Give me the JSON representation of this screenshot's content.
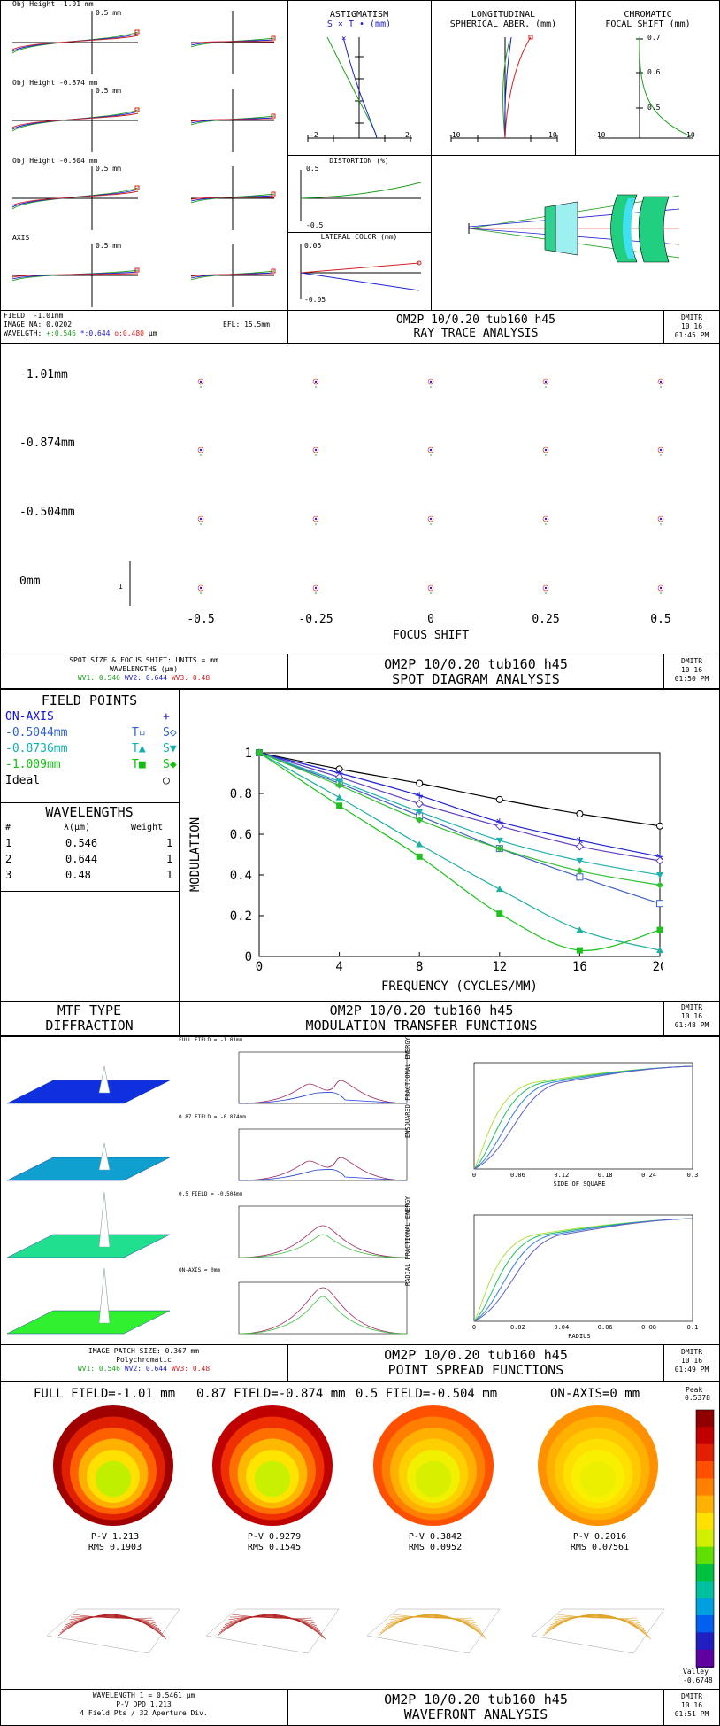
{
  "common": {
    "date": "10 16",
    "author": "DMITR"
  },
  "rayfan": {
    "fans": [
      {
        "label": "Obj Height -1.01 mm",
        "scale": "0.5 mm"
      },
      {
        "label": "Obj Height -0.874 mm",
        "scale": "0.5 mm"
      },
      {
        "label": "Obj Height -0.504 mm",
        "scale": "0.5 mm"
      },
      {
        "label": "AXIS",
        "scale": "0.5 mm"
      }
    ],
    "astig_title1": "ASTIGMATISM",
    "astig_title2": "S × T • (mm)",
    "astig_ticks": [
      "-2",
      "2"
    ],
    "long_title1": "LONGITUDINAL",
    "long_title2": "SPHERICAL ABER. (mm)",
    "long_ticks": [
      "-10",
      "10"
    ],
    "chrom_title1": "CHROMATIC",
    "chrom_title2": "FOCAL SHIFT (mm)",
    "chrom_ticks": [
      "-10",
      "10"
    ],
    "chrom_y": [
      "0.7",
      "0.6",
      "0.5"
    ],
    "dist_title": "DISTORTION (%)",
    "dist_y": [
      "0.5",
      "-0.5"
    ],
    "latcol_title": "LATERAL COLOR (mm)",
    "latcol_y": [
      "0.05",
      "-0.05"
    ],
    "info_field": "FIELD: -1.01mm",
    "info_na": "IMAGE NA: 0.0202",
    "info_efl": "EFL: 15.5mm",
    "info_wl_prefix": "WAVELGTH:",
    "info_wl1": "+:0.546",
    "info_wl2": "*:0.644",
    "info_wl3": "o:0.480",
    "info_wl_unit": "µm",
    "title": "OM2P 10/0.20 tub160 h45",
    "subtitle": "RAY TRACE ANALYSIS",
    "time": "01:45 PM"
  },
  "spot": {
    "rows": [
      "-1.01mm",
      "-0.874mm",
      "-0.504mm",
      "0mm"
    ],
    "focus": [
      "-0.5",
      "-0.25",
      "0",
      "0.25",
      "0.5"
    ],
    "scale_mark": "1",
    "xlabel": "FOCUS SHIFT",
    "info1": "SPOT SIZE & FOCUS SHIFT: UNITS = mm",
    "info2": "WAVELENGTHS (µm)",
    "info_w1": "WV1: 0.546",
    "info_w2": "WV2: 0.644",
    "info_w3": "WV3: 0.48",
    "title": "OM2P 10/0.20 tub160 h45",
    "subtitle": "SPOT DIAGRAM ANALYSIS",
    "time": "01:50 PM"
  },
  "mtf": {
    "fp_title": "FIELD POINTS",
    "fp_rows": [
      {
        "name": "ON-AXIS",
        "t": "",
        "s": "+",
        "color": "#1010e0"
      },
      {
        "name": "-0.5044mm",
        "t": "T▫",
        "s": "S◇",
        "color": "#3060d0"
      },
      {
        "name": "-0.8736mm",
        "t": "T▲",
        "s": "S▼",
        "color": "#10b0b0"
      },
      {
        "name": "-1.009mm",
        "t": "T■",
        "s": "S◆",
        "color": "#10c010"
      },
      {
        "name": "Ideal",
        "t": "",
        "s": "○",
        "color": "#000000"
      }
    ],
    "wl_title": "WAVELENGTHS",
    "wl_head": [
      "#",
      "λ(µm)",
      "Weight"
    ],
    "wl_rows": [
      [
        "1",
        "0.546",
        "1"
      ],
      [
        "2",
        "0.644",
        "1"
      ],
      [
        "3",
        "0.48",
        "1"
      ]
    ],
    "type1": "MTF TYPE",
    "type2": "DIFFRACTION",
    "title": "OM2P 10/0.20 tub160 h45",
    "subtitle": "MODULATION TRANSFER FUNCTIONS",
    "time": "01:48 PM"
  },
  "chart_data": [
    {
      "type": "line",
      "title": "",
      "xlabel": "FREQUENCY (CYCLES/MM)",
      "ylabel": "MODULATION",
      "xlim": [
        0,
        20
      ],
      "ylim": [
        0,
        1
      ],
      "x": [
        0,
        4,
        8,
        12,
        16,
        20
      ],
      "xticks": [
        "0",
        "4",
        "8",
        "12",
        "16",
        "20"
      ],
      "yticks": [
        "0",
        "0.2",
        "0.4",
        "0.6",
        "0.8",
        "1"
      ],
      "series": [
        {
          "name": "Ideal",
          "color": "#000000",
          "marker": "circle",
          "values": [
            1.0,
            0.92,
            0.85,
            0.77,
            0.7,
            0.64
          ]
        },
        {
          "name": "ON-AXIS",
          "color": "#2020d0",
          "marker": "plus",
          "values": [
            1.0,
            0.9,
            0.79,
            0.66,
            0.57,
            0.49
          ]
        },
        {
          "name": "-0.5044mm T",
          "color": "#4060c0",
          "marker": "square-open",
          "values": [
            1.0,
            0.85,
            0.69,
            0.53,
            0.39,
            0.26
          ]
        },
        {
          "name": "-0.5044mm S",
          "color": "#6040c0",
          "marker": "diamond-open",
          "values": [
            1.0,
            0.88,
            0.75,
            0.64,
            0.54,
            0.47
          ]
        },
        {
          "name": "-0.8736mm T",
          "color": "#20b0a0",
          "marker": "triangle",
          "values": [
            1.0,
            0.78,
            0.55,
            0.33,
            0.13,
            0.03
          ]
        },
        {
          "name": "-0.8736mm S",
          "color": "#20b0b0",
          "marker": "triangle-down",
          "values": [
            1.0,
            0.86,
            0.71,
            0.57,
            0.47,
            0.4
          ]
        },
        {
          "name": "-1.009mm T",
          "color": "#20c020",
          "marker": "square",
          "values": [
            1.0,
            0.74,
            0.49,
            0.21,
            0.03,
            0.13
          ]
        },
        {
          "name": "-1.009mm S",
          "color": "#30c030",
          "marker": "diamond",
          "values": [
            1.0,
            0.84,
            0.67,
            0.53,
            0.42,
            0.35
          ]
        }
      ]
    }
  ],
  "psf": {
    "labels": [
      "FULL FIELD = -1.01mm",
      "0.87 FIELD = -0.874mm",
      "0.5 FIELD = -0.504mm",
      "ON-AXIS = 0mm"
    ],
    "ee_ylabel": "ENSQUARED FRACTIONAL ENERGY",
    "ee_xlabel": "SIDE OF SQUARE",
    "ee_xticks": [
      "0",
      "0.06",
      "0.12",
      "0.18",
      "0.24",
      "0.3"
    ],
    "re_ylabel": "RADIAL FRACTIONAL ENERGY",
    "re_xlabel": "RADIUS",
    "re_xticks": [
      "0",
      "0.02",
      "0.04",
      "0.06",
      "0.08",
      "0.1"
    ],
    "info1": "IMAGE PATCH SIZE: 0.367 mm",
    "info2": "Polychromatic",
    "info_w1": "WV1: 0.546",
    "info_w2": "WV2: 0.644",
    "info_w3": "WV3: 0.48",
    "title": "OM2P 10/0.20 tub160 h45",
    "subtitle": "POINT SPREAD FUNCTIONS",
    "time": "01:49 PM"
  },
  "wave": {
    "heads": [
      "FULL FIELD=-1.01 mm",
      "0.87 FIELD=-0.874 mm",
      "0.5 FIELD=-0.504 mm",
      "ON-AXIS=0 mm"
    ],
    "pv": [
      "P-V 1.213",
      "P-V 0.9279",
      "P-V 0.3842",
      "P-V 0.2016"
    ],
    "rms": [
      "RMS 0.1903",
      "RMS 0.1545",
      "RMS 0.0952",
      "RMS 0.07561"
    ],
    "peak_label": "Peak",
    "peak": "0.5378",
    "valley_label": "Valley",
    "valley": "-0.6748",
    "info1": "WAVELENGTH 1 = 0.5461 µm",
    "info2": "P-V OPD 1.213",
    "info3": "4 Field Pts / 32 Aperture Div.",
    "title": "OM2P 10/0.20 tub160 h45",
    "subtitle": "WAVEFRONT ANALYSIS",
    "time": "01:51 PM"
  }
}
